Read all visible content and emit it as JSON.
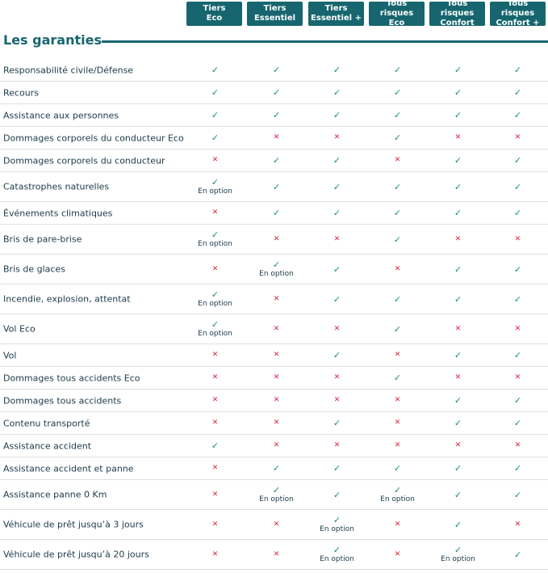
{
  "plans": [
    {
      "line1": "Tiers",
      "line2": "Eco"
    },
    {
      "line1": "Tiers",
      "line2": "Essentiel"
    },
    {
      "line1": "Tiers",
      "line2": "Essentiel +"
    },
    {
      "line1": "Tous risques",
      "line2": "Eco"
    },
    {
      "line1": "Tous risques",
      "line2": "Confort"
    },
    {
      "line1": "Tous risques",
      "line2": "Confort +"
    }
  ],
  "section_title": "Les garanties",
  "option_label": "En option",
  "colors": {
    "accent": "#17666f",
    "yes": "#1a8a7e",
    "no": "#d6233b"
  },
  "rows": [
    {
      "label": "Responsabilité civile/Défense",
      "values": [
        "yes",
        "yes",
        "yes",
        "yes",
        "yes",
        "yes"
      ]
    },
    {
      "label": "Recours",
      "values": [
        "yes",
        "yes",
        "yes",
        "yes",
        "yes",
        "yes"
      ]
    },
    {
      "label": "Assistance aux personnes",
      "values": [
        "yes",
        "yes",
        "yes",
        "yes",
        "yes",
        "yes"
      ]
    },
    {
      "label": "Dommages corporels du conducteur Eco",
      "values": [
        "yes",
        "no",
        "no",
        "yes",
        "no",
        "no"
      ]
    },
    {
      "label": "Dommages corporels du conducteur",
      "values": [
        "no",
        "yes",
        "yes",
        "no",
        "yes",
        "yes"
      ]
    },
    {
      "label": "Catastrophes naturelles",
      "values": [
        "option",
        "yes",
        "yes",
        "yes",
        "yes",
        "yes"
      ]
    },
    {
      "label": "Événements climatiques",
      "values": [
        "no",
        "yes",
        "yes",
        "yes",
        "yes",
        "yes"
      ]
    },
    {
      "label": "Bris de pare-brise",
      "values": [
        "option",
        "no",
        "no",
        "yes",
        "no",
        "no"
      ]
    },
    {
      "label": "Bris de glaces",
      "values": [
        "no",
        "option",
        "yes",
        "no",
        "yes",
        "yes"
      ]
    },
    {
      "label": "Incendie, explosion, attentat",
      "values": [
        "option",
        "no",
        "yes",
        "yes",
        "yes",
        "yes"
      ]
    },
    {
      "label": "Vol Eco",
      "values": [
        "option",
        "no",
        "no",
        "yes",
        "no",
        "no"
      ]
    },
    {
      "label": "Vol",
      "values": [
        "no",
        "no",
        "yes",
        "no",
        "yes",
        "yes"
      ]
    },
    {
      "label": "Dommages tous accidents Eco",
      "values": [
        "no",
        "no",
        "no",
        "yes",
        "no",
        "no"
      ]
    },
    {
      "label": "Dommages tous accidents",
      "values": [
        "no",
        "no",
        "no",
        "no",
        "yes",
        "yes"
      ]
    },
    {
      "label": "Contenu transporté",
      "values": [
        "no",
        "no",
        "yes",
        "no",
        "yes",
        "yes"
      ]
    },
    {
      "label": "Assistance accident",
      "values": [
        "yes",
        "no",
        "no",
        "no",
        "no",
        "no"
      ]
    },
    {
      "label": "Assistance accident et panne",
      "values": [
        "no",
        "yes",
        "yes",
        "yes",
        "yes",
        "yes"
      ]
    },
    {
      "label": "Assistance panne 0 Km",
      "values": [
        "no",
        "option",
        "yes",
        "option",
        "yes",
        "yes"
      ]
    },
    {
      "label": "Véhicule de prêt jusqu’à 3 jours",
      "values": [
        "no",
        "no",
        "option",
        "no",
        "yes",
        "no"
      ]
    },
    {
      "label": "Véhicule de prêt jusqu’à 20 jours",
      "values": [
        "no",
        "no",
        "option",
        "no",
        "option",
        "yes"
      ]
    }
  ]
}
